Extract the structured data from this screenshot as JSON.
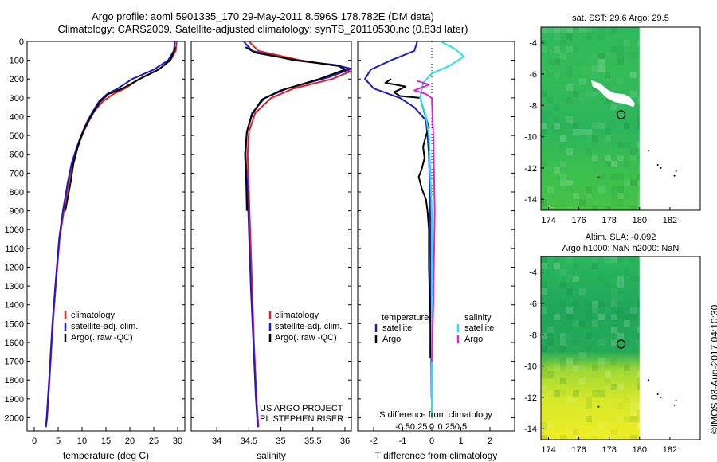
{
  "header": {
    "line1": "Argo profile: aoml 5901335_170 29-May-2011 8.596S 178.782E (DM data)",
    "line2": "Climatology: CARS2009. Satellite-adjusted climatology: synTS_20110530.nc (0.83d later)"
  },
  "credit": "©IMOS 03-Aug-2017 04:10:30",
  "project_note": [
    "US ARGO PROJECT",
    "PI: STEPHEN RISER"
  ],
  "colors": {
    "climatology": "#ee1c1c",
    "satellite": "#1a1ad0",
    "argo": "#000000",
    "sal_satellite": "#22e4ee",
    "sal_argo": "#e020e0"
  },
  "chart_data": [
    {
      "type": "line",
      "name": "temperature-profile",
      "xlabel": "temperature (deg C)",
      "xlim": [
        -1.5,
        31.5
      ],
      "xticks": [
        0,
        5,
        10,
        15,
        20,
        25,
        30
      ],
      "ylim": [
        0,
        2070
      ],
      "yticks": [
        0,
        100,
        200,
        300,
        400,
        500,
        600,
        700,
        800,
        900,
        1000,
        1100,
        1200,
        1300,
        1400,
        1500,
        1600,
        1700,
        1800,
        1900,
        2000
      ],
      "legend": [
        "climatology",
        "satellite-adj. clim.",
        "Argo(..raw -QC)"
      ],
      "series": [
        {
          "name": "climatology",
          "color": "#ee1c1c",
          "x": [
            29.8,
            29.6,
            28.5,
            26,
            22,
            19,
            16.5,
            14.3,
            12.6,
            11.5,
            10.5,
            9.7,
            9,
            8,
            7.2,
            6.2,
            5.3,
            4.5,
            3.9,
            3.2,
            2.7,
            2.45
          ],
          "y": [
            0,
            50,
            100,
            150,
            200,
            250,
            280,
            320,
            370,
            420,
            470,
            520,
            570,
            650,
            750,
            900,
            1050,
            1300,
            1500,
            1800,
            2000,
            2050
          ]
        },
        {
          "name": "satellite-adj. clim.",
          "color": "#1a1ad0",
          "x": [
            29.4,
            29.2,
            28,
            25,
            20.5,
            17.5,
            15.2,
            13.5,
            12.3,
            11.2,
            10.3,
            9.5,
            8.8,
            7.8,
            7,
            6,
            5.2,
            4.4,
            3.8,
            3.1,
            2.6,
            2.4
          ],
          "y": [
            0,
            50,
            100,
            150,
            200,
            250,
            280,
            320,
            370,
            420,
            470,
            520,
            570,
            650,
            750,
            900,
            1050,
            1300,
            1500,
            1800,
            2000,
            2050
          ]
        },
        {
          "name": "Argo(..raw -QC)",
          "color": "#000000",
          "x": [
            29.5,
            29.3,
            28.4,
            26,
            22,
            18.5,
            15.5,
            13.8,
            12.5,
            11.4,
            10.4,
            9.6,
            9,
            8.2,
            7.6,
            6.5
          ],
          "y": [
            30,
            50,
            100,
            150,
            200,
            250,
            280,
            320,
            370,
            420,
            470,
            520,
            570,
            650,
            750,
            900
          ]
        }
      ]
    },
    {
      "type": "line",
      "name": "salinity-profile",
      "xlabel": "salinity",
      "xlim": [
        33.6,
        36.1
      ],
      "xticks": [
        34,
        34.5,
        35,
        35.5,
        36
      ],
      "ylim": [
        0,
        2070
      ],
      "legend": [
        "climatology",
        "satellite-adj. clim.",
        "Argo(..raw -QC)"
      ],
      "series": [
        {
          "name": "climatology",
          "color": "#ee1c1c",
          "x": [
            34.5,
            34.65,
            35.3,
            35.9,
            36.08,
            35.8,
            35.2,
            34.85,
            34.6,
            34.5,
            34.48,
            34.5,
            34.52,
            34.55,
            34.58,
            34.62,
            34.65
          ],
          "y": [
            0,
            50,
            100,
            130,
            160,
            200,
            250,
            300,
            380,
            480,
            600,
            800,
            1000,
            1300,
            1600,
            1900,
            2050
          ]
        },
        {
          "name": "satellite-adj. clim.",
          "color": "#1a1ad0",
          "x": [
            34.42,
            34.55,
            35.2,
            35.85,
            36.1,
            35.75,
            35.1,
            34.75,
            34.55,
            34.47,
            34.45,
            34.48,
            34.5,
            34.53,
            34.57,
            34.61,
            34.64
          ],
          "y": [
            0,
            50,
            100,
            125,
            145,
            190,
            250,
            300,
            380,
            480,
            600,
            800,
            1000,
            1300,
            1600,
            1900,
            2050
          ]
        },
        {
          "name": "Argo(..raw -QC)",
          "color": "#000000",
          "x": [
            34.45,
            34.6,
            35.25,
            35.9,
            36,
            35.6,
            35.0,
            34.7,
            34.55,
            34.47,
            34.44,
            34.46,
            34.47
          ],
          "y": [
            30,
            60,
            100,
            130,
            150,
            200,
            260,
            310,
            390,
            480,
            600,
            750,
            900
          ]
        }
      ]
    },
    {
      "type": "line",
      "name": "difference-profile",
      "xlabel": "T difference from climatology",
      "secondary_xlabel": "S difference from climatology",
      "xlim": [
        -2.55,
        2.85
      ],
      "xticks": [
        -2,
        -1,
        0,
        1,
        2
      ],
      "secondary_xticks": [
        "-0.5",
        "-0.25",
        "0",
        "0.25",
        "0.5"
      ],
      "ylim": [
        0,
        2070
      ],
      "legend_headers": [
        "temperature",
        "salinity"
      ],
      "legend": [
        "satellite",
        "Argo",
        "satellite",
        "Argo"
      ],
      "series": [
        {
          "name": "temperature satellite",
          "color": "#1a1ad0",
          "x": [
            -0.5,
            -0.6,
            -1.4,
            -2.1,
            -2.3,
            -2.0,
            -1.1,
            -0.6,
            -0.2,
            -0.15,
            -0.1,
            -0.07,
            -0.05,
            -0.03,
            -0.02,
            -0.01
          ],
          "y": [
            0,
            50,
            100,
            150,
            200,
            250,
            300,
            350,
            420,
            500,
            600,
            800,
            1000,
            1300,
            1600,
            1900
          ]
        },
        {
          "name": "temperature Argo",
          "color": "#000000",
          "x": [
            -1.4,
            -1.6,
            -0.9,
            -1.3,
            -1.1,
            -0.4,
            -0.1,
            -0.2,
            -0.3,
            -0.25,
            -0.35,
            -0.45,
            -0.35,
            -0.2,
            -0.15,
            -0.1,
            -0.1,
            -0.05,
            -0.05
          ],
          "y": [
            200,
            220,
            240,
            270,
            290,
            300,
            460,
            500,
            560,
            620,
            680,
            720,
            780,
            840,
            900,
            1000,
            1200,
            1500,
            1680
          ]
        },
        {
          "name": "salinity satellite",
          "color": "#22e4ee",
          "x": [
            0.3,
            0.8,
            1.1,
            0.6,
            0.0,
            -0.3,
            -0.4,
            -0.2,
            -0.1,
            -0.05,
            0.0,
            0.0,
            0.0,
            0.0
          ],
          "y": [
            0,
            40,
            80,
            130,
            170,
            220,
            300,
            400,
            500,
            700,
            900,
            1200,
            1600,
            2000
          ]
        },
        {
          "name": "salinity Argo",
          "color": "#e020e0",
          "x": [
            -0.5,
            -0.1,
            -0.6,
            -0.2,
            0.0,
            0.05,
            0.1,
            0.05,
            0.0
          ],
          "y": [
            210,
            230,
            260,
            280,
            300,
            500,
            900,
            1400,
            1700
          ]
        }
      ]
    },
    {
      "type": "heatmap",
      "name": "sst-map",
      "title": "sat. SST: 29.6  Argo: 29.5",
      "xlim": [
        173.5,
        184
      ],
      "ylim": [
        -14.7,
        -3
      ],
      "xticks": [
        174,
        176,
        178,
        180,
        182
      ],
      "yticks": [
        -4,
        -6,
        -8,
        -10,
        -12,
        -14
      ],
      "argo_position": [
        178.782,
        -8.596
      ]
    },
    {
      "type": "heatmap",
      "name": "sla-map",
      "title": "Altim. SLA: -0.092",
      "subtitle": "Argo h1000: NaN h2000: NaN",
      "xlim": [
        173.5,
        184
      ],
      "ylim": [
        -14.7,
        -3
      ],
      "xticks": [
        174,
        176,
        178,
        180,
        182
      ],
      "yticks": [
        -4,
        -6,
        -8,
        -10,
        -12,
        -14
      ],
      "argo_position": [
        178.782,
        -8.596
      ]
    }
  ]
}
